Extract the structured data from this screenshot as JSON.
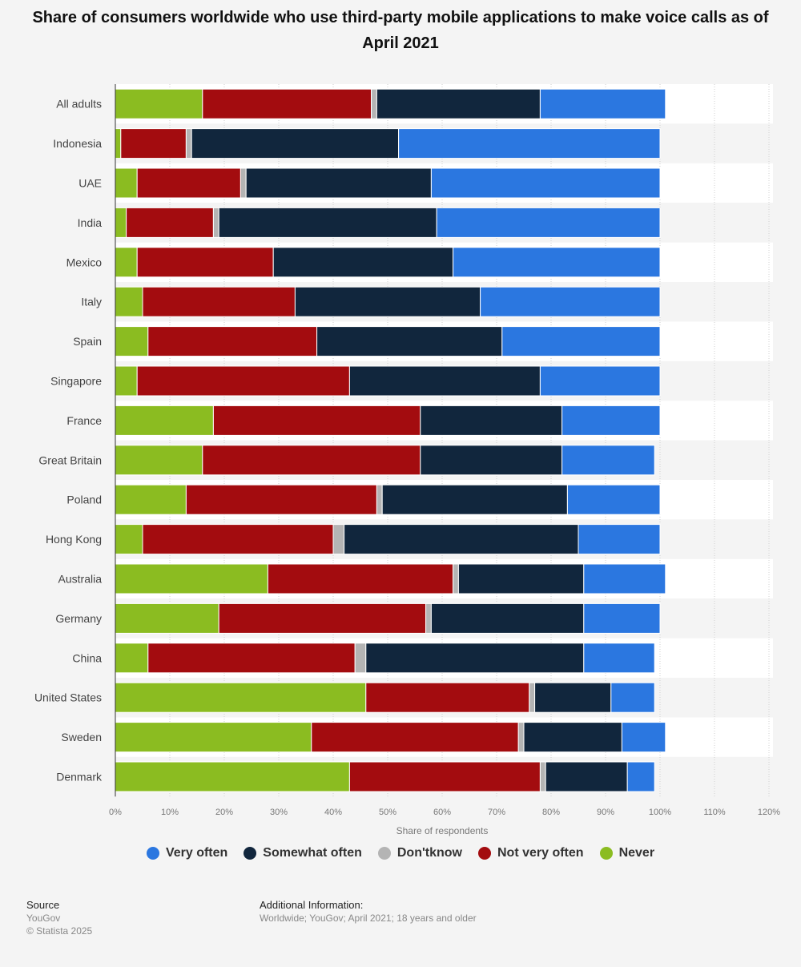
{
  "chart_data": {
    "type": "bar",
    "orientation": "horizontal",
    "stacked": true,
    "title": "Share of consumers worldwide who use third-party mobile applications to make voice calls as of April 2021",
    "xlabel": "Share of respondents",
    "xlim": [
      0,
      120
    ],
    "xticks": [
      "0%",
      "10%",
      "20%",
      "30%",
      "40%",
      "50%",
      "60%",
      "70%",
      "80%",
      "90%",
      "100%",
      "110%",
      "120%"
    ],
    "grid": true,
    "legend_position": "bottom",
    "categories": [
      "All adults",
      "Indonesia",
      "UAE",
      "India",
      "Mexico",
      "Italy",
      "Spain",
      "Singapore",
      "France",
      "Great Britain",
      "Poland",
      "Hong Kong",
      "Australia",
      "Germany",
      "China",
      "United States",
      "Sweden",
      "Denmark"
    ],
    "series": [
      {
        "name": "Never",
        "color": "#8bbc21",
        "values": [
          16,
          1,
          4,
          2,
          4,
          5,
          6,
          4,
          18,
          16,
          13,
          5,
          28,
          19,
          6,
          46,
          36,
          43
        ]
      },
      {
        "name": "Not very often",
        "color": "#a30c0f",
        "values": [
          31,
          12,
          19,
          16,
          25,
          28,
          31,
          39,
          38,
          40,
          35,
          35,
          34,
          38,
          38,
          30,
          38,
          35
        ]
      },
      {
        "name": "Don'tknow",
        "color": "#b4b4b4",
        "values": [
          1,
          1,
          1,
          1,
          0,
          0,
          0,
          0,
          0,
          0,
          1,
          2,
          1,
          1,
          2,
          1,
          1,
          1
        ]
      },
      {
        "name": "Somewhat often",
        "color": "#11263d",
        "values": [
          30,
          38,
          34,
          40,
          33,
          34,
          34,
          35,
          26,
          26,
          34,
          43,
          23,
          28,
          40,
          14,
          18,
          15
        ]
      },
      {
        "name": "Very often",
        "color": "#2b77e0",
        "values": [
          23,
          48,
          42,
          41,
          38,
          33,
          29,
          22,
          18,
          17,
          17,
          15,
          15,
          14,
          13,
          8,
          8,
          5
        ]
      }
    ]
  },
  "legend": [
    {
      "label": "Very often",
      "color": "#2b77e0"
    },
    {
      "label": "Somewhat often",
      "color": "#11263d"
    },
    {
      "label": "Don'tknow",
      "color": "#b4b4b4"
    },
    {
      "label": "Not very often",
      "color": "#a30c0f"
    },
    {
      "label": "Never",
      "color": "#8bbc21"
    }
  ],
  "footer": {
    "source_heading": "Source",
    "source_lines": [
      "YouGov",
      "© Statista 2025"
    ],
    "info_heading": "Additional Information:",
    "info_text": "Worldwide; YouGov; April 2021; 18 years and older"
  }
}
